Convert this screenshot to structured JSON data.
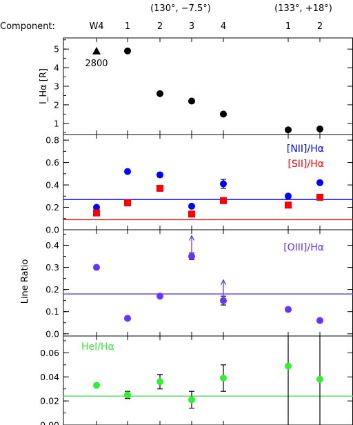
{
  "header": {
    "component_label": "Component:",
    "groups": [
      {
        "label": "(130°, −7.5°)"
      },
      {
        "label": "(133°, +18°)"
      }
    ],
    "components": [
      "W4",
      "1",
      "2",
      "3",
      "4",
      "1",
      "2"
    ]
  },
  "y_axis_label": "Line Ratio",
  "chart_data": [
    {
      "type": "scatter",
      "panel": "halpha",
      "ylabel": "I_Hα [R]",
      "ylim": [
        0.4,
        5.6
      ],
      "yticks": [
        1,
        2,
        3,
        4,
        5
      ],
      "x": [
        "W4",
        "1",
        "2",
        "3",
        "4",
        "1",
        "2"
      ],
      "series": [
        {
          "marker": "circle",
          "color": "#000000",
          "x": [
            "1",
            "2",
            "3",
            "4"
          ],
          "values": [
            4.9,
            2.6,
            2.2,
            1.5
          ]
        },
        {
          "marker": "circle",
          "color": "#000000",
          "x": [
            "1 (133°, +18°)",
            "2 (133°, +18°)"
          ],
          "values": [
            0.65,
            0.7
          ]
        },
        {
          "marker": "triangle",
          "color": "#000000",
          "x": [
            "W4"
          ],
          "values": [
            4.9
          ],
          "point_label": "2800"
        }
      ]
    },
    {
      "type": "scatter",
      "panel": "nii_sii",
      "ylim": [
        0.0,
        0.85
      ],
      "yticks": [
        "0.0",
        "0.2",
        "0.4",
        "0.6",
        "0.8"
      ],
      "x": [
        "W4",
        "1",
        "2",
        "3",
        "4",
        "1",
        "2"
      ],
      "series": [
        {
          "name": "[NII]/Hα",
          "color": "#0000ff",
          "marker": "circle",
          "values": [
            0.2,
            0.52,
            0.49,
            0.21,
            0.41,
            0.3,
            0.42
          ],
          "error": [
            0,
            0,
            0.02,
            0,
            0.04,
            0,
            0
          ],
          "reference_line": 0.27
        },
        {
          "name": "[SII]/Hα",
          "color": "#ff0000",
          "marker": "square",
          "values": [
            0.15,
            0.24,
            0.37,
            0.14,
            0.26,
            0.22,
            0.29
          ],
          "reference_line": 0.09
        }
      ]
    },
    {
      "type": "scatter",
      "panel": "oiii",
      "ylim": [
        -0.01,
        0.47
      ],
      "yticks": [
        "0.0",
        "0.1",
        "0.2",
        "0.3",
        "0.4"
      ],
      "x": [
        "W4",
        "1",
        "2",
        "3",
        "4",
        "1",
        "2"
      ],
      "series": [
        {
          "name": "[OIII]/Hα",
          "color": "#6633ff",
          "marker": "circle",
          "values": [
            0.3,
            0.07,
            0.17,
            0.35,
            0.15,
            0.11,
            0.06
          ],
          "error": [
            0,
            0,
            0,
            0.015,
            0.02,
            0,
            0
          ],
          "lower_limit": [
            false,
            false,
            false,
            true,
            true,
            false,
            false
          ],
          "reference_line": 0.18
        }
      ]
    },
    {
      "type": "scatter",
      "panel": "hei",
      "ylim": [
        0.0,
        0.074
      ],
      "yticks": [
        "0.00",
        "0.02",
        "0.04",
        "0.06"
      ],
      "x": [
        "W4",
        "1",
        "2",
        "3",
        "4",
        "1",
        "2"
      ],
      "series": [
        {
          "name": "HeI/Hα",
          "color": "#33ee33",
          "marker": "circle",
          "values": [
            0.033,
            0.025,
            0.036,
            0.021,
            0.039,
            0.049,
            0.038
          ],
          "error": [
            0,
            0.003,
            0.006,
            0.007,
            0.011,
            0.05,
            0.05
          ],
          "reference_line": 0.024
        }
      ]
    }
  ]
}
